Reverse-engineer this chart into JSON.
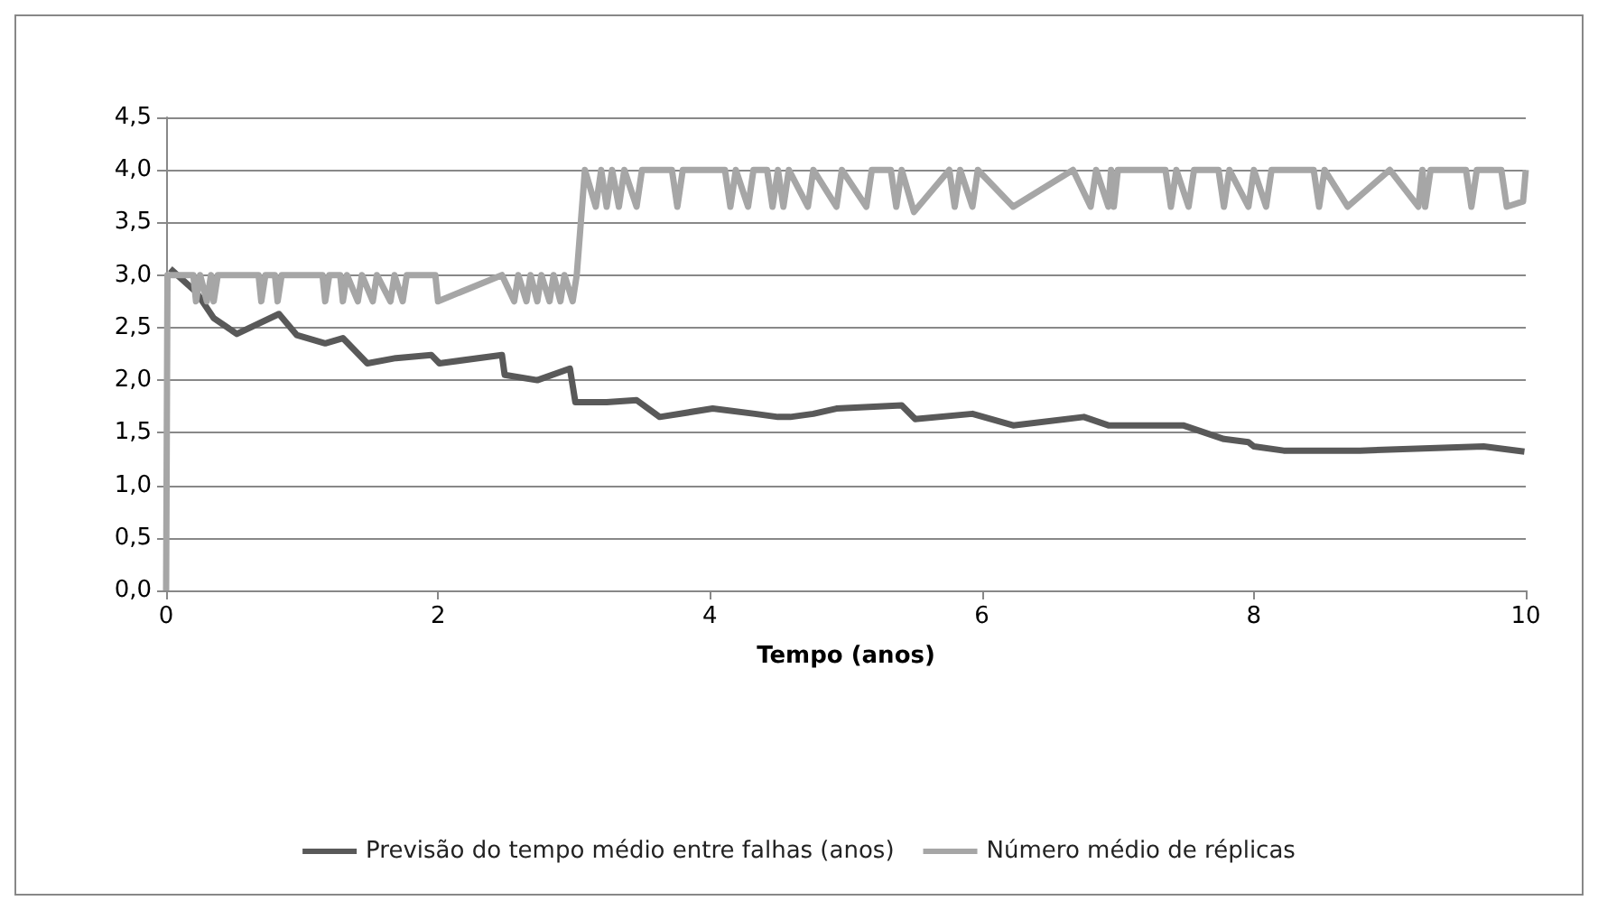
{
  "chart_data": {
    "type": "line",
    "xlabel": "Tempo (anos)",
    "xlim": [
      0,
      10
    ],
    "xticks": [
      0,
      2,
      4,
      6,
      8,
      10
    ],
    "ylim": [
      0,
      4.5
    ],
    "yticks": [
      {
        "value": 0,
        "label": "0,0"
      },
      {
        "value": 0.5,
        "label": "0,5"
      },
      {
        "value": 1,
        "label": "1,0"
      },
      {
        "value": 1.5,
        "label": "1,5"
      },
      {
        "value": 2,
        "label": "2,0"
      },
      {
        "value": 2.5,
        "label": "2,5"
      },
      {
        "value": 3,
        "label": "3,0"
      },
      {
        "value": 3.5,
        "label": "3,5"
      },
      {
        "value": 4,
        "label": "4,0"
      },
      {
        "value": 4.5,
        "label": "4,5"
      }
    ],
    "grid": "y",
    "legend": "bottom",
    "marker": "none",
    "line_style": "solid",
    "series": [
      {
        "name": "Previsão do tempo médio entre falhas (anos)",
        "color": "#595959",
        "x": [
          0.03,
          0.22,
          0.35,
          0.52,
          0.83,
          0.96,
          1.17,
          1.3,
          1.48,
          1.69,
          1.95,
          2.01,
          2.47,
          2.49,
          2.73,
          2.97,
          3.01,
          3.24,
          3.46,
          3.63,
          4.02,
          4.33,
          4.5,
          4.59,
          4.76,
          4.93,
          5.41,
          5.51,
          5.93,
          6.23,
          6.75,
          6.93,
          7.48,
          7.78,
          7.96,
          8.0,
          8.22,
          8.78,
          9.69,
          9.99
        ],
        "values": [
          3.06,
          2.84,
          2.59,
          2.44,
          2.63,
          2.43,
          2.35,
          2.4,
          2.16,
          2.21,
          2.24,
          2.16,
          2.24,
          2.05,
          2.0,
          2.11,
          1.79,
          1.79,
          1.81,
          1.65,
          1.73,
          1.68,
          1.65,
          1.65,
          1.68,
          1.73,
          1.76,
          1.63,
          1.68,
          1.57,
          1.65,
          1.57,
          1.57,
          1.44,
          1.41,
          1.37,
          1.33,
          1.33,
          1.37,
          1.32
        ]
      },
      {
        "name": "Número médio de réplicas",
        "color": "#a6a6a6",
        "x": [
          0,
          0.01,
          0.2,
          0.22,
          0.25,
          0.3,
          0.33,
          0.35,
          0.38,
          0.68,
          0.7,
          0.73,
          0.8,
          0.82,
          0.85,
          1.15,
          1.17,
          1.2,
          1.28,
          1.3,
          1.33,
          1.41,
          1.44,
          1.52,
          1.55,
          1.65,
          1.68,
          1.74,
          1.77,
          1.98,
          2.0,
          2.47,
          2.56,
          2.59,
          2.65,
          2.68,
          2.73,
          2.76,
          2.82,
          2.85,
          2.9,
          2.93,
          2.99,
          3.02,
          3.08,
          3.16,
          3.2,
          3.24,
          3.28,
          3.33,
          3.37,
          3.46,
          3.5,
          3.72,
          3.76,
          3.8,
          4.11,
          4.15,
          4.19,
          4.28,
          4.32,
          4.42,
          4.46,
          4.5,
          4.54,
          4.58,
          4.72,
          4.76,
          4.93,
          4.97,
          5.15,
          5.19,
          5.33,
          5.37,
          5.41,
          5.5,
          5.76,
          5.8,
          5.84,
          5.93,
          5.97,
          6.23,
          6.67,
          6.8,
          6.84,
          6.93,
          6.95,
          6.97,
          7.0,
          7.35,
          7.39,
          7.43,
          7.52,
          7.56,
          7.74,
          7.78,
          7.82,
          7.96,
          8.0,
          8.09,
          8.13,
          8.44,
          8.48,
          8.52,
          8.69,
          9.0,
          9.21,
          9.24,
          9.26,
          9.3,
          9.56,
          9.6,
          9.64,
          9.82,
          9.86,
          9.98,
          10
        ],
        "values": [
          0,
          3,
          3,
          2.75,
          3,
          2.75,
          3,
          2.75,
          3,
          3,
          2.75,
          3,
          3,
          2.75,
          3,
          3,
          2.75,
          3,
          3,
          2.75,
          3,
          2.75,
          3,
          2.75,
          3,
          2.75,
          3,
          2.75,
          3,
          3,
          2.75,
          3,
          2.75,
          3,
          2.75,
          3,
          2.75,
          3,
          2.75,
          3,
          2.75,
          3,
          2.75,
          3,
          4,
          3.65,
          4,
          3.65,
          4,
          3.65,
          4,
          3.65,
          4,
          4,
          3.65,
          4,
          4,
          3.65,
          4,
          3.65,
          4,
          4,
          3.65,
          4,
          3.65,
          4,
          3.65,
          4,
          3.65,
          4,
          3.65,
          4,
          4,
          3.65,
          4,
          3.6,
          4,
          3.65,
          4,
          3.65,
          4,
          3.65,
          4,
          3.65,
          4,
          3.65,
          4,
          3.65,
          4,
          4,
          3.65,
          4,
          3.65,
          4,
          4,
          3.65,
          4,
          3.65,
          4,
          3.65,
          4,
          4,
          3.65,
          4,
          3.65,
          4,
          3.65,
          4,
          3.65,
          4,
          4,
          3.65,
          4,
          4,
          3.65,
          3.7,
          4
        ]
      }
    ]
  }
}
